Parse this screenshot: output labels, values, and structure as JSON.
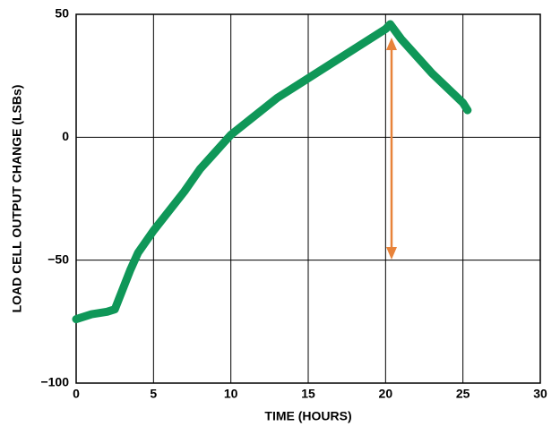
{
  "chart_data": {
    "type": "line",
    "x_label": "TIME (HOURS)",
    "y_label": "LOAD CELL OUTPUT CHANGE (LSBs)",
    "x": [
      0,
      1,
      2,
      2.5,
      3,
      3.5,
      4,
      5,
      6,
      7,
      8,
      9,
      10,
      11,
      12,
      13,
      14,
      15,
      16,
      17,
      18,
      19,
      20,
      20.3,
      21,
      22,
      23,
      24,
      25,
      25.3
    ],
    "values": [
      -74,
      -72,
      -71,
      -70,
      -62,
      -54,
      -47,
      -38,
      -30,
      -22,
      -13,
      -6,
      1,
      6,
      11,
      16,
      20,
      24,
      28,
      32,
      36,
      40,
      44,
      46,
      40,
      33,
      26,
      20,
      14,
      11
    ],
    "color": "#0f9758",
    "xlim": [
      0,
      30
    ],
    "xticks": [
      0,
      5,
      10,
      15,
      20,
      25,
      30
    ],
    "ylim": [
      -100,
      50
    ],
    "yticks": [
      {
        "value": -100,
        "label": "−100"
      },
      {
        "value": -50,
        "label": "−50"
      },
      0,
      50
    ],
    "grid": true
  }
}
